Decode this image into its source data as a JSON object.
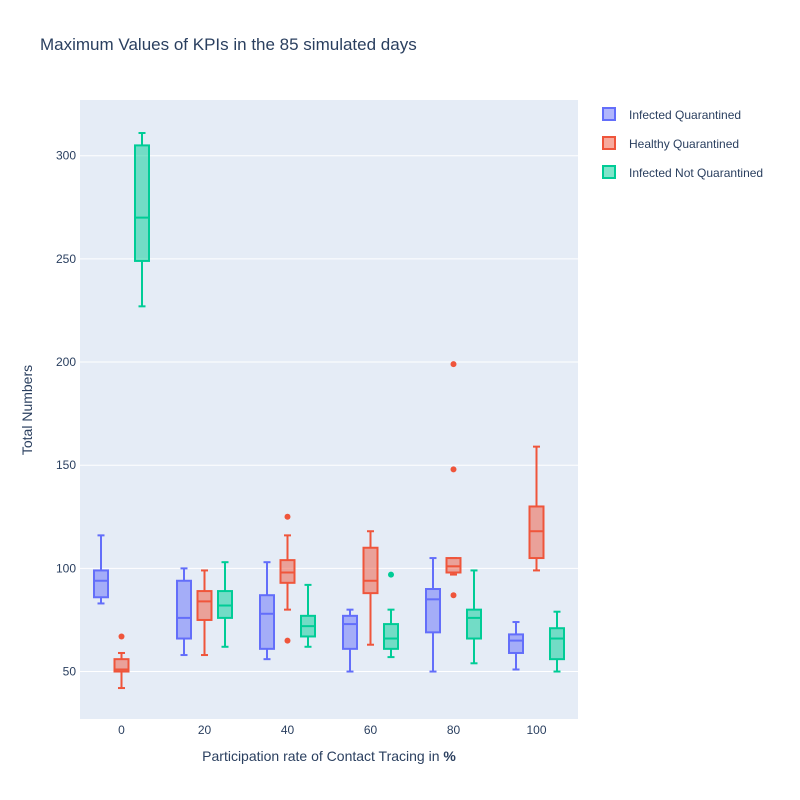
{
  "chart_data": {
    "type": "box",
    "title": "Maximum Values of KPIs in the 85 simulated days",
    "xlabel_prefix": "Participation rate of Contact Tracing in ",
    "xlabel_bold": "%",
    "ylabel": "Total Numbers",
    "categories": [
      "0",
      "20",
      "40",
      "60",
      "80",
      "100"
    ],
    "ylim": [
      27,
      327
    ],
    "yticks": [
      50,
      100,
      150,
      200,
      250,
      300
    ],
    "grid": true,
    "legend_position": "top-right",
    "series": [
      {
        "name": "Infected Quarantined",
        "color": "#636efa",
        "boxes": [
          {
            "q1": 86,
            "median": 94,
            "q3": 99,
            "low": 83,
            "high": 116,
            "outliers": []
          },
          {
            "q1": 66,
            "median": 76,
            "q3": 94,
            "low": 58,
            "high": 100,
            "outliers": []
          },
          {
            "q1": 61,
            "median": 78,
            "q3": 87,
            "low": 56,
            "high": 103,
            "outliers": []
          },
          {
            "q1": 61,
            "median": 73,
            "q3": 77,
            "low": 50,
            "high": 80,
            "outliers": []
          },
          {
            "q1": 69,
            "median": 85,
            "q3": 90,
            "low": 50,
            "high": 105,
            "outliers": []
          },
          {
            "q1": 59,
            "median": 65,
            "q3": 68,
            "low": 51,
            "high": 74,
            "outliers": []
          }
        ]
      },
      {
        "name": "Healthy Quarantined",
        "color": "#ef553b",
        "boxes": [
          {
            "q1": 50,
            "median": 51,
            "q3": 56,
            "low": 42,
            "high": 59,
            "outliers": [
              67
            ]
          },
          {
            "q1": 75,
            "median": 84,
            "q3": 89,
            "low": 58,
            "high": 99,
            "outliers": []
          },
          {
            "q1": 93,
            "median": 98,
            "q3": 104,
            "low": 80,
            "high": 116,
            "outliers": [
              125,
              65
            ]
          },
          {
            "q1": 88,
            "median": 94,
            "q3": 110,
            "low": 63,
            "high": 118,
            "outliers": []
          },
          {
            "q1": 98,
            "median": 101,
            "q3": 105,
            "low": 97,
            "high": 105,
            "outliers": [
              199,
              148,
              87
            ]
          },
          {
            "q1": 105,
            "median": 118,
            "q3": 130,
            "low": 99,
            "high": 159,
            "outliers": []
          }
        ]
      },
      {
        "name": "Infected Not Quarantined",
        "color": "#00cc96",
        "boxes": [
          {
            "q1": 249,
            "median": 270,
            "q3": 305,
            "low": 227,
            "high": 311,
            "outliers": []
          },
          {
            "q1": 76,
            "median": 82,
            "q3": 89,
            "low": 62,
            "high": 103,
            "outliers": []
          },
          {
            "q1": 67,
            "median": 72,
            "q3": 77,
            "low": 62,
            "high": 92,
            "outliers": []
          },
          {
            "q1": 61,
            "median": 66,
            "q3": 73,
            "low": 57,
            "high": 80,
            "outliers": [
              97
            ]
          },
          {
            "q1": 66,
            "median": 76,
            "q3": 80,
            "low": 54,
            "high": 99,
            "outliers": []
          },
          {
            "q1": 56,
            "median": 66,
            "q3": 71,
            "low": 50,
            "high": 79,
            "outliers": []
          }
        ]
      }
    ]
  }
}
